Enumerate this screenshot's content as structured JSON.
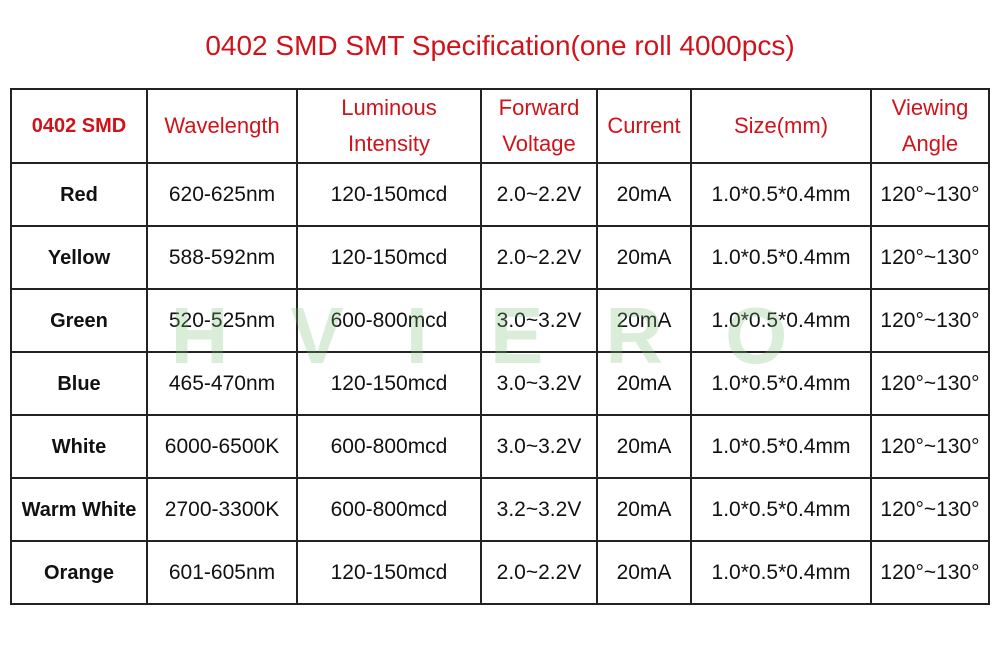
{
  "title": "0402 SMD SMT Specification(one roll 4000pcs)",
  "watermark": "HVIERO",
  "table": {
    "header": [
      "0402 SMD",
      "Wavelength",
      "Luminous Intensity",
      "Forward Voltage",
      "Current",
      "Size(mm)",
      "Viewing Angle"
    ],
    "rows": [
      [
        "Red",
        "620-625nm",
        "120-150mcd",
        "2.0~2.2V",
        "20mA",
        "1.0*0.5*0.4mm",
        "120°~130°"
      ],
      [
        "Yellow",
        "588-592nm",
        "120-150mcd",
        "2.0~2.2V",
        "20mA",
        "1.0*0.5*0.4mm",
        "120°~130°"
      ],
      [
        "Green",
        "520-525nm",
        "600-800mcd",
        "3.0~3.2V",
        "20mA",
        "1.0*0.5*0.4mm",
        "120°~130°"
      ],
      [
        "Blue",
        "465-470nm",
        "120-150mcd",
        "3.0~3.2V",
        "20mA",
        "1.0*0.5*0.4mm",
        "120°~130°"
      ],
      [
        "White",
        "6000-6500K",
        "600-800mcd",
        "3.0~3.2V",
        "20mA",
        "1.0*0.5*0.4mm",
        "120°~130°"
      ],
      [
        "Warm White",
        "2700-3300K",
        "600-800mcd",
        "3.2~3.2V",
        "20mA",
        "1.0*0.5*0.4mm",
        "120°~130°"
      ],
      [
        "Orange",
        "601-605nm",
        "120-150mcd",
        "2.0~2.2V",
        "20mA",
        "1.0*0.5*0.4mm",
        "120°~130°"
      ]
    ]
  }
}
